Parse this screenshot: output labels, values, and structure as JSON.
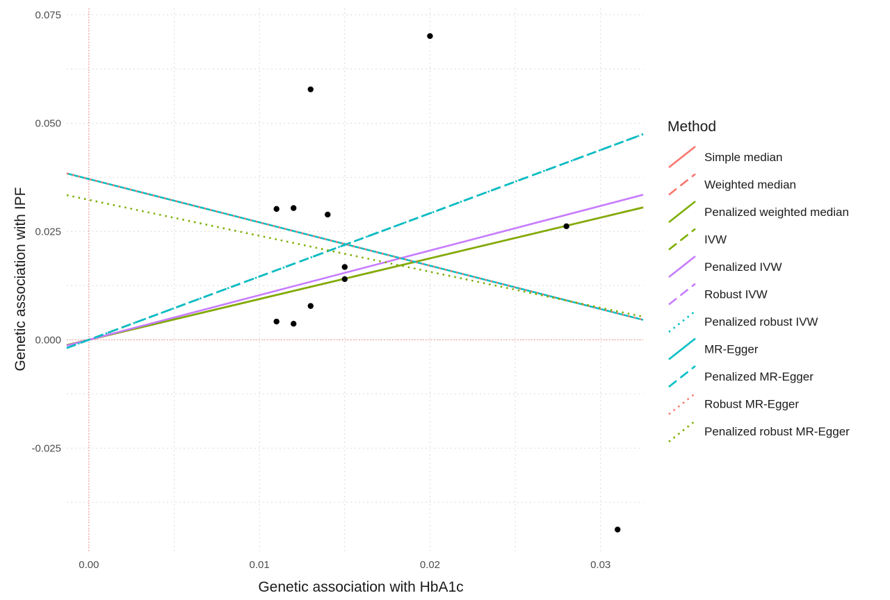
{
  "chart_data": {
    "type": "scatter",
    "title": "",
    "xlabel": "Genetic association with HbA1c",
    "ylabel": "Genetic association with IPF",
    "xlim": [
      -0.0013,
      0.0325
    ],
    "ylim": [
      -0.049,
      0.0765
    ],
    "x_ticks": [
      0.0,
      0.01,
      0.02,
      0.03
    ],
    "x_tick_labels": [
      "0.00",
      "0.01",
      "0.02",
      "0.03"
    ],
    "y_ticks": [
      -0.025,
      0.0,
      0.025,
      0.05,
      0.075
    ],
    "y_tick_labels": [
      "-0.025",
      "0.000",
      "0.025",
      "0.050",
      "0.075"
    ],
    "grid": true,
    "reference_lines": {
      "x": 0,
      "y": 0,
      "color": "#f8766d"
    },
    "points": [
      {
        "x": 0.011,
        "y": 0.0302
      },
      {
        "x": 0.012,
        "y": 0.0304
      },
      {
        "x": 0.013,
        "y": 0.0578
      },
      {
        "x": 0.014,
        "y": 0.0289
      },
      {
        "x": 0.015,
        "y": 0.0168
      },
      {
        "x": 0.015,
        "y": 0.014
      },
      {
        "x": 0.013,
        "y": 0.0078
      },
      {
        "x": 0.011,
        "y": 0.0042
      },
      {
        "x": 0.012,
        "y": 0.0037
      },
      {
        "x": 0.02,
        "y": 0.0701
      },
      {
        "x": 0.028,
        "y": 0.0262
      },
      {
        "x": 0.031,
        "y": -0.0438
      }
    ],
    "point_color": "#000000",
    "legend": {
      "title": "Method",
      "position": "right",
      "entries": [
        {
          "name": "Simple median",
          "color": "#f8766d",
          "dash": "solid",
          "intercept": 0,
          "slope": 0.94
        },
        {
          "name": "Weighted median",
          "color": "#f8766d",
          "dash": "dashed",
          "intercept": 0,
          "slope": 0.94
        },
        {
          "name": "Penalized weighted median",
          "color": "#7cae00",
          "dash": "solid",
          "intercept": 0,
          "slope": 0.94
        },
        {
          "name": "IVW",
          "color": "#7cae00",
          "dash": "dashed",
          "intercept": 0,
          "slope": 1.46
        },
        {
          "name": "Penalized IVW",
          "color": "#c77cff",
          "dash": "solid",
          "intercept": 0,
          "slope": 1.03
        },
        {
          "name": "Robust IVW",
          "color": "#c77cff",
          "dash": "dashed",
          "intercept": 0,
          "slope": 1.46
        },
        {
          "name": "Penalized robust IVW",
          "color": "#00bfc4",
          "dash": "dotted",
          "intercept": 0,
          "slope": 1.46
        },
        {
          "name": "MR-Egger",
          "color": "#00bfc4",
          "dash": "solid",
          "intercept": 0.0371,
          "slope": -1.0
        },
        {
          "name": "Penalized MR-Egger",
          "color": "#00bfc4",
          "dash": "dashed",
          "intercept": 0,
          "slope": 1.46
        },
        {
          "name": "Robust MR-Egger",
          "color": "#f8766d",
          "dash": "dotted",
          "intercept": 0.0371,
          "slope": -1.0
        },
        {
          "name": "Penalized robust MR-Egger",
          "color": "#7cae00",
          "dash": "dotted",
          "intercept": 0.0323,
          "slope": -0.83
        }
      ]
    }
  }
}
